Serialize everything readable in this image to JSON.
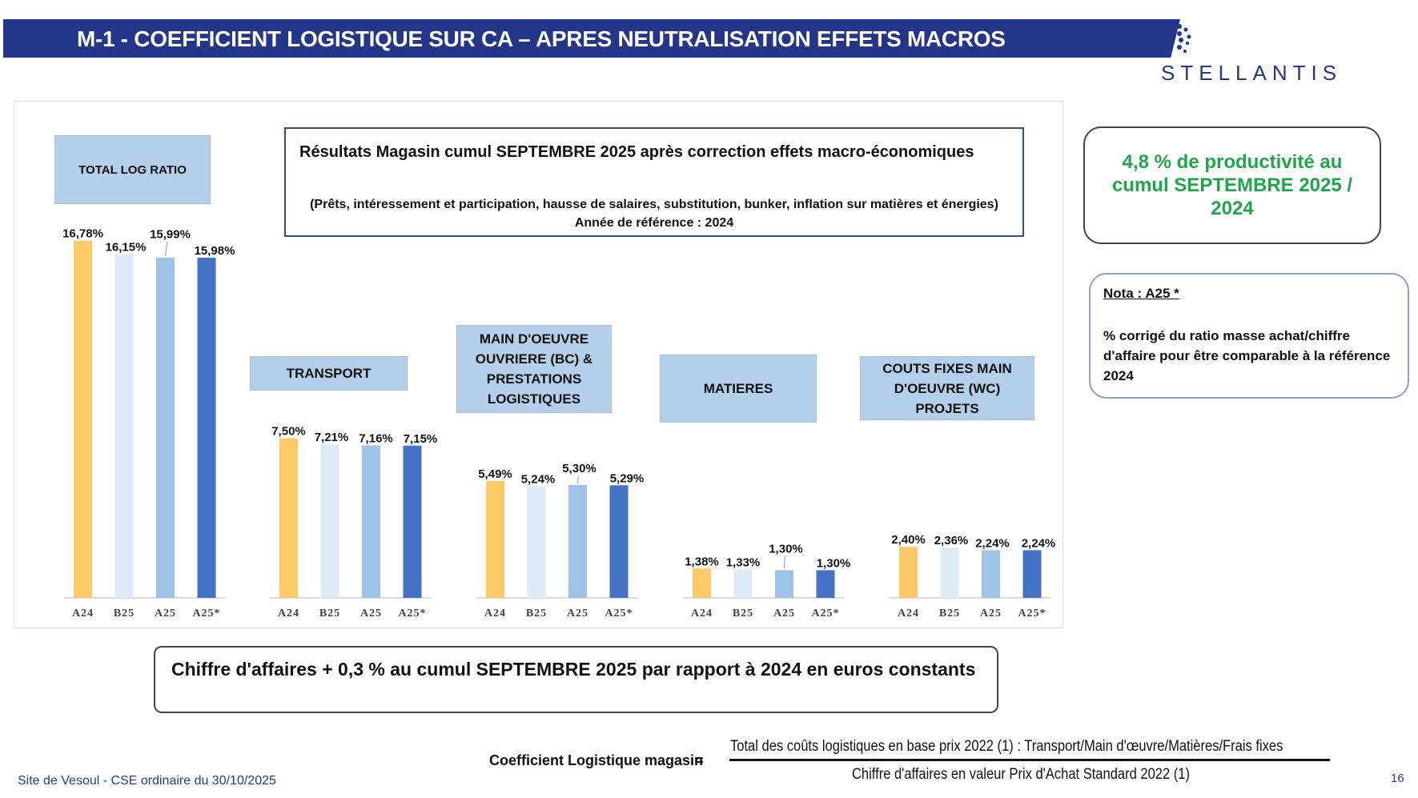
{
  "header": {
    "title": "M-1 - COEFFICIENT LOGISTIQUE SUR CA – APRES NEUTRALISATION EFFETS MACROS"
  },
  "brand": {
    "name": "STELLANTIS",
    "color": "#24368a",
    "logo_icon": "stellantis-dots-icon"
  },
  "results_box": {
    "title": "Résultats Magasin cumul SEPTEMBRE 2025 après correction effets macro-économiques",
    "subtitle": "(Prêts, intéressement et participation, hausse de salaires, substitution, bunker, inflation sur matières et énergies)",
    "reference": "Année de référence : 2024"
  },
  "productivity": {
    "text": "4,8 % de productivité au cumul SEPTEMBRE 2025 / 2024",
    "color": "#1fa64a"
  },
  "nota": {
    "title": "Nota : A25 *",
    "text": "% corrigé du ratio masse achat/chiffre d'affaire pour être comparable à la référence 2024"
  },
  "revenue_note": "Chiffre d'affaires + 0,3 % au cumul SEPTEMBRE 2025 par rapport à 2024  en euros constants",
  "formula": {
    "label": "Coefficient Logistique magasin",
    "equals": "=",
    "numerator": "Total des coûts logistiques en base prix 2022 (1) : Transport/Main d'œuvre/Matières/Frais fixes",
    "denominator": "Chiffre d'affaires en valeur Prix d'Achat Standard 2022 (1)"
  },
  "footer": {
    "site": "Site de Vesoul - CSE ordinaire du 30/10/2025",
    "page": "16"
  },
  "chart_data": {
    "type": "bar",
    "series_colors": [
      "#ffc966",
      "#dde9f6",
      "#9dc3e6",
      "#4472c4"
    ],
    "groups": [
      {
        "category": "TOTAL LOG RATIO",
        "categories": [
          "A24",
          "B25",
          "A25",
          "A25*"
        ],
        "values": [
          16.78,
          16.15,
          15.99,
          15.98
        ],
        "labels": [
          "16,78%",
          "16,15%",
          "15,99%",
          "15,98%"
        ]
      },
      {
        "category": "TRANSPORT",
        "categories": [
          "A24",
          "B25",
          "A25",
          "A25*"
        ],
        "values": [
          7.5,
          7.21,
          7.16,
          7.15
        ],
        "labels": [
          "7,50%",
          "7,21%",
          "7,16%",
          "7,15%"
        ]
      },
      {
        "category": "MAIN D'OEUVRE OUVRIERE  (BC) & PRESTATIONS LOGISTIQUES",
        "categories": [
          "A24",
          "B25",
          "A25",
          "A25*"
        ],
        "values": [
          5.49,
          5.24,
          5.3,
          5.29
        ],
        "labels": [
          "5,49%",
          "5,24%",
          "5,30%",
          "5,29%"
        ]
      },
      {
        "category": "MATIERES",
        "categories": [
          "A24",
          "B25",
          "A25",
          "A25*"
        ],
        "values": [
          1.38,
          1.33,
          1.3,
          1.3
        ],
        "labels": [
          "1,38%",
          "1,33%",
          "1,30%",
          "1,30%"
        ]
      },
      {
        "category": "COUTS FIXES MAIN D'OEUVRE (WC) PROJETS",
        "categories": [
          "A24",
          "B25",
          "A25",
          "A25*"
        ],
        "values": [
          2.4,
          2.36,
          2.24,
          2.24
        ],
        "labels": [
          "2,40%",
          "2,36%",
          "2,24%",
          "2,24%"
        ]
      }
    ]
  }
}
